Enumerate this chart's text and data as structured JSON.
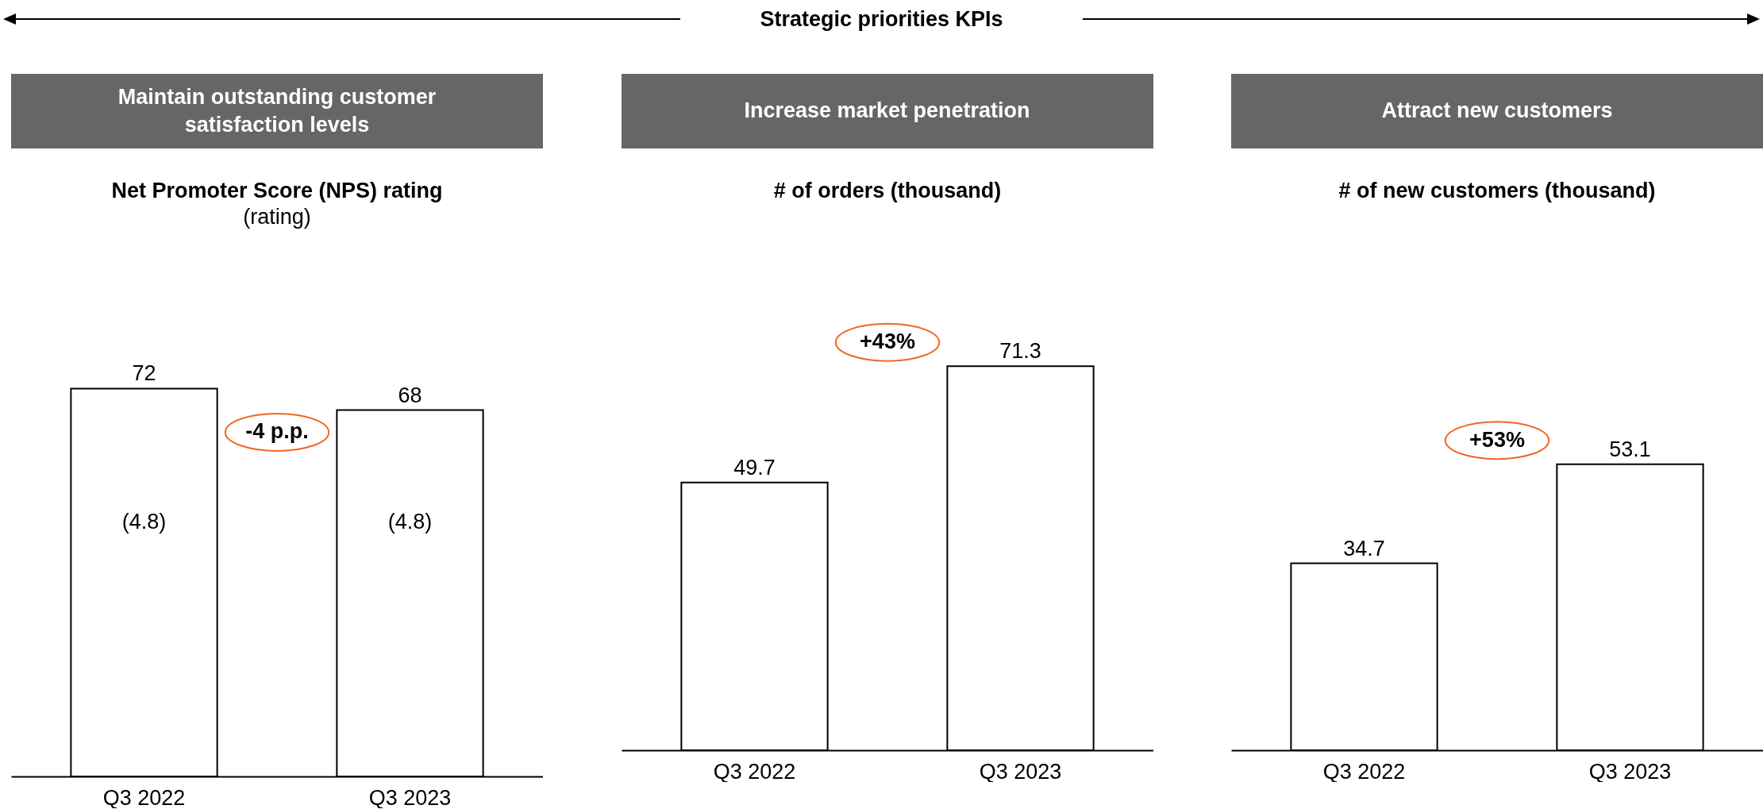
{
  "chart_data": [
    {
      "type": "bar",
      "title": "Maintain outstanding customer satisfaction levels",
      "subtitle": "Net Promoter Score (NPS) rating",
      "categories": [
        "Q3 2022",
        "Q3 2023"
      ],
      "values": [
        72,
        68
      ],
      "color": "#ffffff",
      "data_labels": true,
      "annotations": [
        "Strategic priorities KPIs",
        "(rating)",
        "(4.8)",
        "(4.8)",
        "-4 p.p."
      ]
    },
    {
      "type": "bar",
      "title": "Increase market penetration",
      "subtitle": "# of orders (thousand)",
      "categories": [
        "Q3 2022",
        "Q3 2023"
      ],
      "values": [
        49.7,
        71.3
      ],
      "color": "#ffffff",
      "data_labels": true,
      "annotations": [
        "+43%"
      ]
    },
    {
      "type": "bar",
      "title": "Attract new customers",
      "subtitle": "# of new customers (thousand)",
      "categories": [
        "Q3 2022",
        "Q3 2023"
      ],
      "values": [
        34.7,
        53.1
      ],
      "color": "#ffffff",
      "data_labels": true,
      "annotations": [
        "+53%"
      ]
    }
  ]
}
